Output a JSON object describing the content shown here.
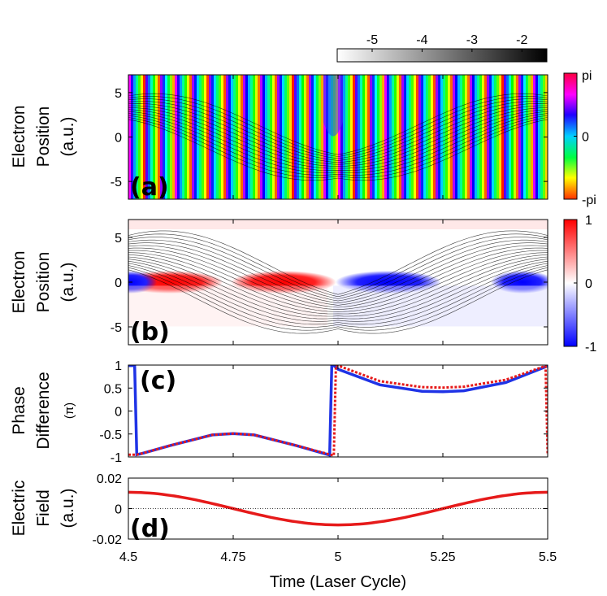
{
  "chart_data": [
    {
      "id": "a",
      "type": "heatmap",
      "panel_label": "(a)",
      "ylabel_lines": [
        "Electron",
        "Position",
        "(a.u.)"
      ],
      "x_range": [
        4.5,
        5.5
      ],
      "y_range": [
        -7,
        7
      ],
      "y_ticks": [
        "-5",
        "0",
        "5"
      ],
      "y_tick_values": [
        -5,
        0,
        5
      ],
      "colorbar": {
        "colormap": "hsv-phase",
        "ticks": [
          "pi",
          "0",
          "-pi"
        ],
        "tick_values": [
          3.14159,
          0,
          -3.14159
        ]
      },
      "grayscale_colorbar": {
        "ticks": [
          "-5",
          "-4",
          "-3",
          "-2"
        ],
        "tick_values": [
          -5,
          -4,
          -3,
          -2
        ],
        "range": [
          -5.7,
          -1.5
        ]
      }
    },
    {
      "id": "b",
      "type": "heatmap",
      "panel_label": "(b)",
      "ylabel_lines": [
        "Electron",
        "Position",
        "(a.u.)"
      ],
      "x_range": [
        4.5,
        5.5
      ],
      "y_range": [
        -7,
        7
      ],
      "y_ticks": [
        "-5",
        "0",
        "5"
      ],
      "y_tick_values": [
        -5,
        0,
        5
      ],
      "colorbar": {
        "colormap": "blue-white-red",
        "ticks": [
          "1",
          "0",
          "-1"
        ],
        "tick_values": [
          1,
          0,
          -1
        ]
      }
    },
    {
      "id": "c",
      "type": "line",
      "panel_label": "(c)",
      "ylabel_lines": [
        "Phase",
        "Difference",
        "(π)"
      ],
      "x_range": [
        4.5,
        5.5
      ],
      "y_range": [
        -1,
        1
      ],
      "y_ticks": [
        "-1",
        "-0.5",
        "0",
        "0.5",
        "1"
      ],
      "y_tick_values": [
        -1,
        -0.5,
        0,
        0.5,
        1
      ],
      "series": [
        {
          "name": "solid",
          "color": "#1f33e6",
          "style": "solid",
          "x": [
            4.5,
            4.515,
            4.52,
            4.53,
            4.6,
            4.7,
            4.75,
            4.8,
            4.9,
            4.98,
            4.985,
            4.99,
            5.0,
            5.1,
            5.2,
            5.25,
            5.3,
            5.4,
            5.5
          ],
          "y": [
            0.99,
            0.99,
            -0.95,
            -0.93,
            -0.75,
            -0.52,
            -0.49,
            -0.52,
            -0.75,
            -0.96,
            0.99,
            0.99,
            0.91,
            0.57,
            0.43,
            0.42,
            0.44,
            0.62,
            0.98
          ]
        },
        {
          "name": "dotted",
          "color": "#e61a1a",
          "style": "dotted",
          "x": [
            4.5,
            4.52,
            4.53,
            4.6,
            4.7,
            4.75,
            4.8,
            4.9,
            4.99,
            4.995,
            5.0,
            5.1,
            5.2,
            5.25,
            5.3,
            5.4,
            5.495,
            5.5
          ],
          "y": [
            -0.95,
            -0.95,
            -0.93,
            -0.75,
            -0.52,
            -0.49,
            -0.52,
            -0.75,
            -0.97,
            0.99,
            0.99,
            0.65,
            0.52,
            0.51,
            0.53,
            0.68,
            0.98,
            -0.96
          ]
        }
      ]
    },
    {
      "id": "d",
      "type": "line",
      "panel_label": "(d)",
      "ylabel_lines": [
        "Electric",
        "Field",
        "(a.u.)"
      ],
      "x_range": [
        4.5,
        5.5
      ],
      "y_range": [
        -0.02,
        0.02
      ],
      "y_ticks": [
        "-0.02",
        "0",
        "0.02"
      ],
      "y_tick_values": [
        -0.02,
        0,
        0.02
      ],
      "x_ticks": [
        "4.5",
        "4.75",
        "5",
        "5.25",
        "5.5"
      ],
      "x_tick_values": [
        4.5,
        4.75,
        5.0,
        5.25,
        5.5
      ],
      "xlabel": "Time (Laser Cycle)",
      "series": [
        {
          "name": "field",
          "color": "#e61a1a",
          "amplitude": 0.0107,
          "cycles": 1.0,
          "x": [
            4.5,
            4.75,
            5.0,
            5.25,
            5.5
          ],
          "y": [
            0.0107,
            0.0,
            -0.0107,
            0.0,
            0.0107
          ]
        }
      ]
    }
  ]
}
